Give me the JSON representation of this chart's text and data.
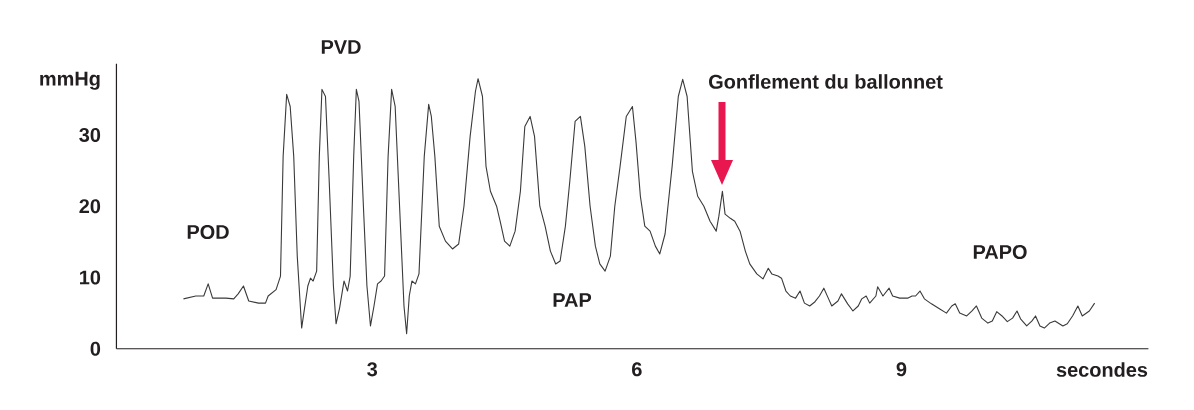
{
  "chart_data": {
    "type": "line",
    "xlabel": "secondes",
    "ylabel": "mmHg",
    "color": "#3a3a3a",
    "xlim": [
      0.1,
      11.8
    ],
    "ylim": [
      0,
      40
    ],
    "xticks": [
      3,
      6,
      9
    ],
    "yticks": [
      0,
      10,
      20,
      30
    ],
    "x": [
      0.86,
      1.0,
      1.09,
      1.14,
      1.19,
      1.34,
      1.43,
      1.48,
      1.54,
      1.6,
      1.71,
      1.79,
      1.82,
      1.91,
      1.96,
      1.99,
      2.03,
      2.07,
      2.11,
      2.15,
      2.2,
      2.22,
      2.27,
      2.3,
      2.33,
      2.37,
      2.4,
      2.43,
      2.47,
      2.51,
      2.56,
      2.59,
      2.63,
      2.68,
      2.72,
      2.75,
      2.79,
      2.82,
      2.85,
      2.9,
      2.94,
      2.98,
      3.02,
      3.06,
      3.1,
      3.14,
      3.18,
      3.22,
      3.26,
      3.31,
      3.36,
      3.39,
      3.42,
      3.45,
      3.49,
      3.53,
      3.59,
      3.64,
      3.67,
      3.71,
      3.76,
      3.83,
      3.91,
      3.98,
      4.04,
      4.11,
      4.17,
      4.2,
      4.25,
      4.29,
      4.34,
      4.41,
      4.45,
      4.5,
      4.56,
      4.62,
      4.68,
      4.73,
      4.79,
      4.84,
      4.9,
      4.96,
      5.02,
      5.08,
      5.13,
      5.19,
      5.24,
      5.3,
      5.36,
      5.41,
      5.47,
      5.53,
      5.58,
      5.64,
      5.7,
      5.75,
      5.81,
      5.88,
      5.95,
      5.99,
      6.04,
      6.09,
      6.15,
      6.21,
      6.26,
      6.32,
      6.4,
      6.47,
      6.52,
      6.57,
      6.63,
      6.69,
      6.76,
      6.83,
      6.9,
      6.93,
      6.97,
      7.0,
      7.06,
      7.11,
      7.17,
      7.23,
      7.28,
      7.36,
      7.43,
      7.49,
      7.53,
      7.6,
      7.64,
      7.69,
      7.74,
      7.8,
      7.85,
      7.9,
      7.96,
      8.02,
      8.07,
      8.12,
      8.17,
      8.21,
      8.28,
      8.32,
      8.39,
      8.45,
      8.51,
      8.55,
      8.6,
      8.64,
      8.71,
      8.73,
      8.79,
      8.86,
      8.9,
      8.98,
      9.07,
      9.12,
      9.16,
      9.21,
      9.26,
      9.34,
      9.43,
      9.51,
      9.57,
      9.61,
      9.66,
      9.74,
      9.8,
      9.85,
      9.91,
      9.98,
      10.03,
      10.08,
      10.14,
      10.2,
      10.26,
      10.31,
      10.35,
      10.42,
      10.48,
      10.52,
      10.57,
      10.62,
      10.68,
      10.74,
      10.83,
      10.88,
      10.94,
      11.0,
      11.05,
      11.13,
      11.19
    ],
    "values": [
      7.0,
      7.4,
      7.4,
      9.1,
      7.1,
      7.1,
      7.0,
      7.7,
      8.8,
      6.7,
      6.4,
      6.4,
      7.4,
      8.3,
      10.2,
      27.0,
      35.7,
      34.0,
      27.0,
      13.0,
      2.9,
      4.6,
      8.8,
      9.9,
      9.5,
      10.9,
      27.0,
      36.4,
      35.4,
      24.2,
      8.8,
      3.5,
      5.7,
      9.5,
      8.1,
      10.2,
      27.0,
      36.4,
      34.7,
      20.0,
      8.8,
      3.2,
      6.0,
      9.1,
      9.5,
      10.2,
      27.0,
      36.4,
      34.0,
      20.0,
      6.0,
      2.1,
      7.4,
      9.5,
      9.1,
      10.5,
      27.0,
      34.3,
      32.6,
      27.0,
      17.2,
      15.1,
      14.0,
      14.7,
      20.0,
      29.8,
      36.1,
      37.9,
      35.4,
      25.6,
      22.1,
      20.0,
      17.9,
      15.1,
      14.4,
      16.5,
      22.1,
      31.2,
      32.6,
      29.8,
      20.0,
      17.2,
      13.7,
      11.9,
      12.3,
      17.2,
      23.5,
      31.9,
      32.6,
      28.4,
      20.0,
      14.4,
      11.9,
      10.9,
      13.0,
      20.0,
      25.6,
      32.6,
      34.0,
      29.1,
      21.4,
      17.2,
      16.5,
      14.4,
      13.3,
      16.1,
      25.6,
      35.4,
      37.8,
      35.4,
      24.9,
      21.4,
      20.0,
      17.9,
      16.5,
      18.6,
      22.1,
      18.9,
      18.3,
      17.9,
      16.5,
      13.7,
      11.9,
      10.5,
      9.8,
      11.3,
      10.5,
      10.2,
      9.9,
      8.1,
      7.4,
      7.1,
      8.1,
      6.4,
      6.0,
      6.6,
      7.4,
      8.5,
      7.1,
      6.0,
      6.7,
      7.7,
      6.3,
      5.3,
      6.0,
      7.0,
      7.4,
      6.4,
      7.4,
      8.7,
      7.4,
      8.5,
      7.4,
      7.1,
      7.1,
      7.4,
      7.4,
      8.1,
      7.0,
      6.3,
      5.6,
      5.0,
      6.0,
      6.3,
      5.0,
      4.6,
      5.3,
      6.0,
      4.3,
      3.6,
      3.9,
      5.2,
      4.6,
      3.8,
      4.3,
      5.3,
      4.2,
      3.2,
      3.9,
      4.6,
      3.2,
      2.9,
      3.6,
      3.9,
      3.2,
      3.5,
      4.6,
      6.0,
      4.6,
      5.3,
      6.4
    ],
    "annotations": [
      "POD",
      "PVD",
      "PAP",
      "PAPO",
      "Gonflement du ballonnet"
    ]
  }
}
